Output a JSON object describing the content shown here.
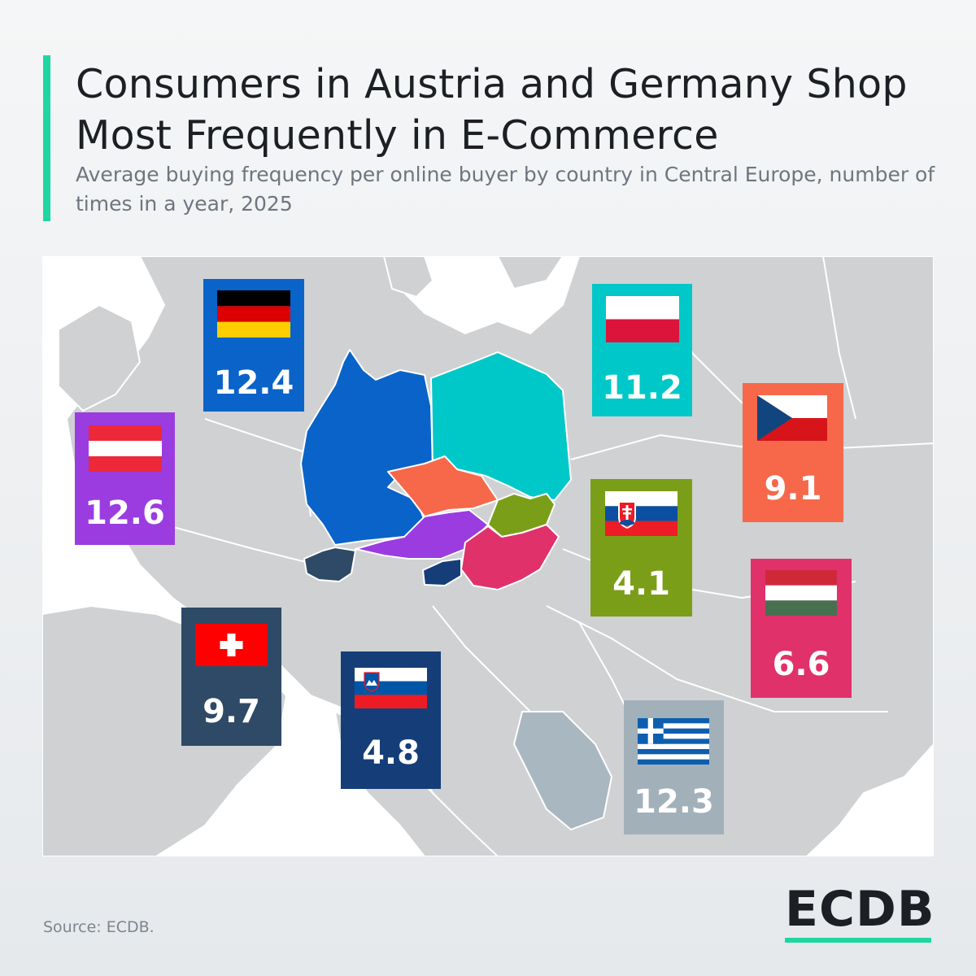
{
  "header": {
    "title": "Consumers in Austria and Germany Shop Most Frequently in E-Commerce",
    "subtitle": "Average buying frequency per online buyer by country in Central Europe, number of times in a year, 2025"
  },
  "colors": {
    "accent": "#1fd6a3",
    "map_land": "#cfd1d3",
    "map_sea": "#ffffff"
  },
  "chart_data": {
    "type": "table",
    "unit": "number of times in a year",
    "countries": [
      {
        "key": "germany",
        "value": "12.4",
        "color": "#0a63c9",
        "flag": "germany-flag-icon"
      },
      {
        "key": "poland",
        "value": "11.2",
        "color": "#00c8c8",
        "flag": "poland-flag-icon"
      },
      {
        "key": "austria",
        "value": "12.6",
        "color": "#9a3ce0",
        "flag": "austria-flag-icon"
      },
      {
        "key": "czechia",
        "value": "9.1",
        "color": "#f7684a",
        "flag": "czechia-flag-icon"
      },
      {
        "key": "slovakia",
        "value": "4.1",
        "color": "#7b9e19",
        "flag": "slovakia-flag-icon"
      },
      {
        "key": "hungary",
        "value": "6.6",
        "color": "#e0316b",
        "flag": "hungary-flag-icon"
      },
      {
        "key": "switzerland",
        "value": "9.7",
        "color": "#2e4a66",
        "flag": "switzerland-flag-icon"
      },
      {
        "key": "slovenia",
        "value": "4.8",
        "color": "#153e78",
        "flag": "slovenia-flag-icon"
      },
      {
        "key": "greece",
        "value": "12.3",
        "color": "#a2b0ba",
        "flag": "greece-flag-icon"
      }
    ]
  },
  "footer": {
    "source": "Source: ECDB.",
    "logo": "ECDB"
  }
}
